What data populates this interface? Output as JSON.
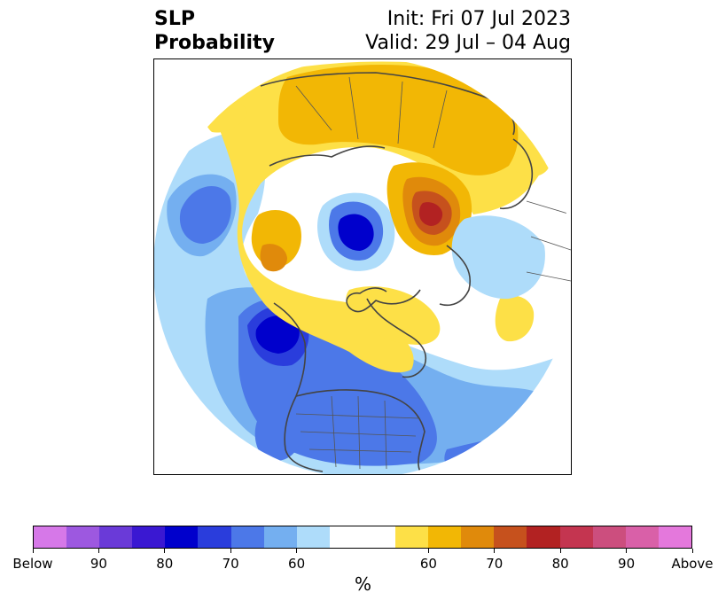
{
  "title": {
    "left_line1": "SLP",
    "left_line2": "Probability",
    "right_line1": "Init: Fri 07 Jul 2023",
    "right_line2": "Valid: 29 Jul – 04 Aug"
  },
  "colorbar": {
    "colors": [
      "#d678e8",
      "#9d58e0",
      "#6a3ad8",
      "#3a18d2",
      "#0000cc",
      "#2a3ddc",
      "#4c78e8",
      "#74aff0",
      "#aedcfa",
      "#ffffff",
      "#fde047",
      "#f2b705",
      "#e08a0b",
      "#c6511d",
      "#b22222",
      "#c43550",
      "#cc4e7e",
      "#d960a8",
      "#e478dc"
    ],
    "tick_labels": [
      "Below",
      "90",
      "80",
      "70",
      "60",
      "60",
      "70",
      "80",
      "90",
      "Above"
    ],
    "unit_label": "%"
  },
  "map": {
    "projection": "north-polar-stereographic",
    "palette": {
      "below_60": "#aedcfa",
      "below_70": "#74aff0",
      "below_80": "#4c78e8",
      "below_90": "#2a3ddc",
      "below_95": "#0000cc",
      "below_dark": "#3a18d2",
      "above_60": "#fde047",
      "above_70": "#f2b705",
      "above_80": "#e08a0b",
      "above_90": "#c6511d",
      "above_95": "#b22222",
      "coast": "#444444"
    }
  }
}
